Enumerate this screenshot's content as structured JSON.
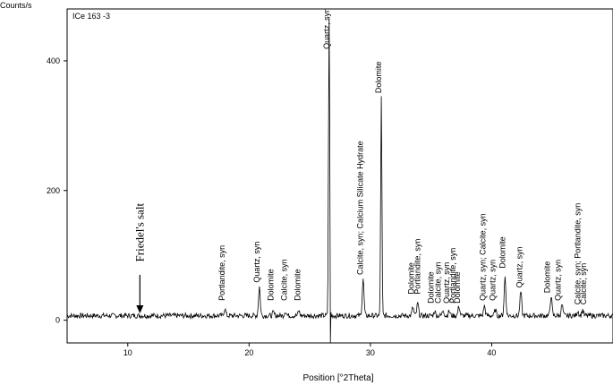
{
  "chart_data": {
    "type": "line",
    "title": "",
    "sample_label": "ICe 163 -3",
    "xlabel": "Position [°2Theta]",
    "ylabel": "Counts/s",
    "xlim": [
      5,
      50
    ],
    "ylim": [
      -35,
      480
    ],
    "x_ticks": [
      10,
      20,
      30,
      40
    ],
    "y_ticks": [
      0,
      200,
      400
    ],
    "grid": false,
    "line_color": "#000000",
    "baseline": 7,
    "peaks": [
      {
        "x": 18.0,
        "y": 18
      },
      {
        "x": 20.85,
        "y": 52
      },
      {
        "x": 22.0,
        "y": 12
      },
      {
        "x": 23.0,
        "y": 14
      },
      {
        "x": 24.1,
        "y": 14
      },
      {
        "x": 26.6,
        "y": 470
      },
      {
        "x": 29.4,
        "y": 64
      },
      {
        "x": 30.9,
        "y": 343
      },
      {
        "x": 33.5,
        "y": 20
      },
      {
        "x": 33.9,
        "y": 26
      },
      {
        "x": 35.3,
        "y": 14
      },
      {
        "x": 36.0,
        "y": 16
      },
      {
        "x": 36.5,
        "y": 14
      },
      {
        "x": 37.3,
        "y": 22
      },
      {
        "x": 39.4,
        "y": 22
      },
      {
        "x": 40.3,
        "y": 16
      },
      {
        "x": 41.1,
        "y": 67
      },
      {
        "x": 42.4,
        "y": 44
      },
      {
        "x": 44.9,
        "y": 38
      },
      {
        "x": 45.8,
        "y": 24
      },
      {
        "x": 47.1,
        "y": 15
      },
      {
        "x": 47.5,
        "y": 16
      }
    ],
    "annotations": [
      {
        "x": 18.0,
        "y": 30,
        "text": "Portlandite, syn"
      },
      {
        "x": 20.85,
        "y": 58,
        "text": "Quartz, syn"
      },
      {
        "x": 22.0,
        "y": 30,
        "text": "Dolomite"
      },
      {
        "x": 23.1,
        "y": 30,
        "text": "Calcite, syn"
      },
      {
        "x": 24.2,
        "y": 30,
        "text": "Dolomite"
      },
      {
        "x": 26.6,
        "y": 418,
        "text": "Quartz, syn"
      },
      {
        "x": 29.4,
        "y": 70,
        "text": "Calcite, syn; Calcium Silicate Hydrate"
      },
      {
        "x": 30.9,
        "y": 350,
        "text": "Dolomite"
      },
      {
        "x": 33.6,
        "y": 40,
        "text": "Dolomite"
      },
      {
        "x": 34.1,
        "y": 40,
        "text": "Portlandite, syn"
      },
      {
        "x": 35.2,
        "y": 26,
        "text": "Dolomite"
      },
      {
        "x": 35.8,
        "y": 26,
        "text": "Calcite, syn"
      },
      {
        "x": 36.5,
        "y": 26,
        "text": "Quartz, syn"
      },
      {
        "x": 37.0,
        "y": 26,
        "text": "Portlandite, syn"
      },
      {
        "x": 37.4,
        "y": 26,
        "text": "Dolomite"
      },
      {
        "x": 39.5,
        "y": 30,
        "text": "Quartz, syn; Calcite, syn"
      },
      {
        "x": 40.3,
        "y": 30,
        "text": "Quartz, syn"
      },
      {
        "x": 41.1,
        "y": 80,
        "text": "Dolomite"
      },
      {
        "x": 42.5,
        "y": 50,
        "text": "Quartz, syn"
      },
      {
        "x": 44.8,
        "y": 42,
        "text": "Dolomite"
      },
      {
        "x": 45.7,
        "y": 30,
        "text": "Quartz, syn"
      },
      {
        "x": 47.3,
        "y": 24,
        "text": "Calcite, syn; Portlandite, syn"
      },
      {
        "x": 47.8,
        "y": 24,
        "text": "Calcite, syn"
      }
    ],
    "marker": {
      "x": 11,
      "y": 12,
      "text": "Friedel's salt",
      "text_y": 90,
      "arrow_top_y": 70
    }
  }
}
